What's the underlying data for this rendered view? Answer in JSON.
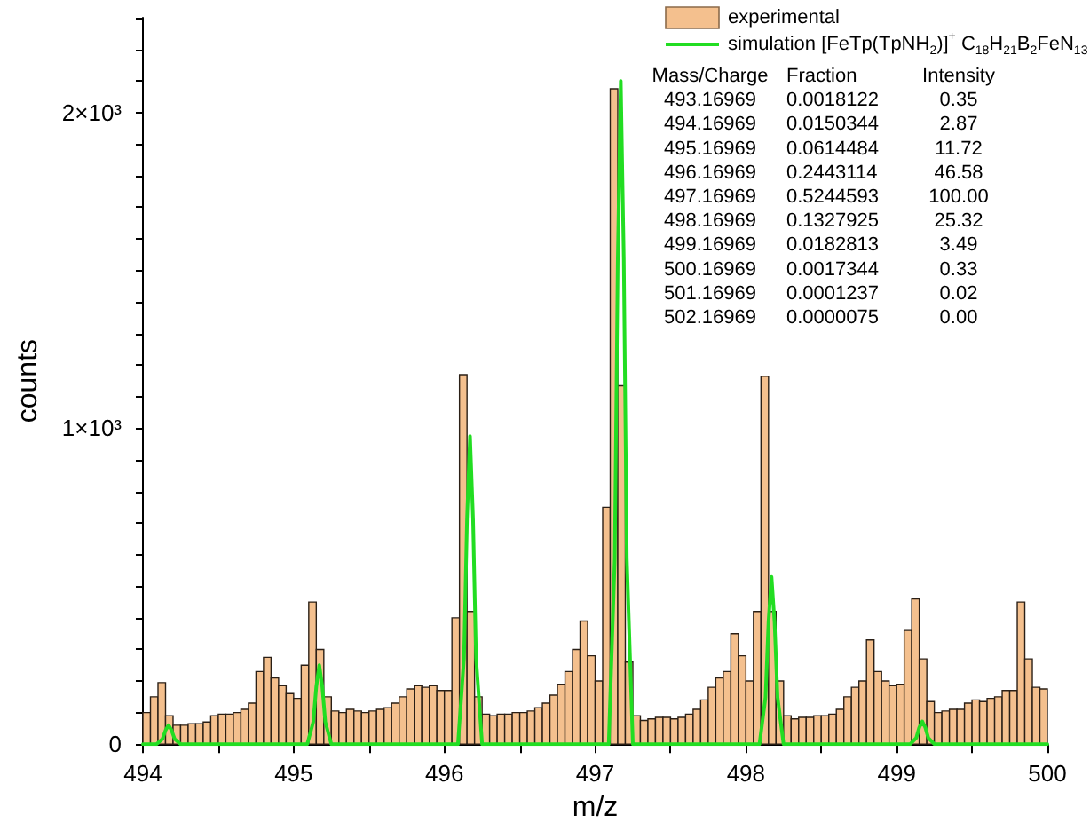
{
  "chart_data": {
    "type": "histogram",
    "xlabel": "m/z",
    "ylabel": "counts",
    "legend": "top right",
    "bins": [
      494.0,
      494.05,
      494.1,
      494.15,
      494.2,
      494.25,
      494.3,
      494.35,
      494.4,
      494.45,
      494.5,
      494.55,
      494.6,
      494.65,
      494.7,
      494.75,
      494.8,
      494.85,
      494.9,
      494.95,
      495.0,
      495.05,
      495.1,
      495.15,
      495.2,
      495.25,
      495.3,
      495.35,
      495.4,
      495.45,
      495.5,
      495.55,
      495.6,
      495.65,
      495.7,
      495.75,
      495.8,
      495.85,
      495.9,
      495.95,
      496.0,
      496.05,
      496.1,
      496.15,
      496.2,
      496.25,
      496.3,
      496.35,
      496.4,
      496.45,
      496.5,
      496.55,
      496.6,
      496.65,
      496.7,
      496.75,
      496.8,
      496.85,
      496.9,
      496.95,
      497.0,
      497.05,
      497.1,
      497.15,
      497.2,
      497.25,
      497.3,
      497.35,
      497.4,
      497.45,
      497.5,
      497.55,
      497.6,
      497.65,
      497.7,
      497.75,
      497.8,
      497.85,
      497.9,
      497.95,
      498.0,
      498.05,
      498.1,
      498.15,
      498.2,
      498.25,
      498.3,
      498.35,
      498.4,
      498.45,
      498.5,
      498.55,
      498.6,
      498.65,
      498.7,
      498.75,
      498.8,
      498.85,
      498.9,
      498.95,
      499.0,
      499.05,
      499.1,
      499.15,
      499.2,
      499.25,
      499.3,
      499.35,
      499.4,
      499.45,
      499.5,
      499.55,
      499.6,
      499.65,
      499.7,
      499.75,
      499.8,
      499.85,
      499.9,
      499.95,
      500.0
    ],
    "series": [
      {
        "name": "experimental",
        "color": "#f4c08e",
        "values": [
          100,
          150,
          195,
          90,
          60,
          60,
          65,
          65,
          70,
          90,
          95,
          95,
          100,
          110,
          130,
          230,
          275,
          210,
          185,
          160,
          145,
          250,
          450,
          300,
          150,
          105,
          100,
          110,
          105,
          100,
          105,
          110,
          115,
          130,
          150,
          175,
          185,
          180,
          185,
          170,
          170,
          400,
          1170,
          420,
          150,
          95,
          90,
          95,
          95,
          100,
          100,
          105,
          115,
          130,
          155,
          190,
          230,
          300,
          390,
          280,
          200,
          750,
          2075,
          1135,
          260,
          90,
          75,
          80,
          85,
          85,
          80,
          85,
          95,
          110,
          140,
          180,
          210,
          230,
          350,
          280,
          200,
          420,
          1165,
          420,
          200,
          90,
          80,
          85,
          85,
          90,
          90,
          95,
          110,
          150,
          180,
          200,
          330,
          230,
          200,
          185,
          190,
          360,
          460,
          270,
          135,
          100,
          105,
          110,
          110,
          130,
          140,
          135,
          145,
          150,
          170,
          170,
          450,
          270,
          180,
          175
        ]
      },
      {
        "name": "simulation [FeTp(TpNH$_{2}$)]$^{+}$ C$_{18}$H$_{21}$B$_{2}$FeN$_{13}$",
        "type": "line",
        "color": "#22dd22",
        "marker": "none",
        "line_style": "solid",
        "x": [
          494.0,
          494.09,
          494.13,
          494.15,
          494.17,
          494.19,
          494.21,
          494.25,
          495.09,
          495.13,
          495.15,
          495.17,
          495.19,
          495.21,
          495.25,
          496.09,
          496.13,
          496.15,
          496.17,
          496.19,
          496.21,
          496.25,
          497.09,
          497.13,
          497.15,
          497.17,
          497.19,
          497.21,
          497.25,
          498.09,
          498.13,
          498.15,
          498.17,
          498.19,
          498.21,
          498.25,
          499.09,
          499.13,
          499.15,
          499.17,
          499.19,
          499.21,
          499.25,
          500.0
        ],
        "values": [
          0,
          0,
          17,
          44,
          60,
          44,
          17,
          0,
          0,
          70,
          182,
          250,
          182,
          70,
          0,
          0,
          273,
          712,
          975,
          712,
          273,
          0,
          0,
          588,
          1533,
          2100,
          1533,
          588,
          0,
          0,
          148,
          387,
          530,
          387,
          148,
          0,
          0,
          20,
          53,
          72,
          53,
          20,
          0,
          0
        ]
      }
    ],
    "xlim": [
      494,
      500
    ],
    "xticks": [
      494,
      {
        "value": 494.5,
        "label": null
      },
      495,
      {
        "value": 495.5,
        "label": null
      },
      496,
      {
        "value": 496.5,
        "label": null
      },
      497,
      {
        "value": 497.5,
        "label": null
      },
      498,
      {
        "value": 498.5,
        "label": null
      },
      499,
      {
        "value": 499.5,
        "label": null
      },
      500
    ],
    "ylim": [
      0,
      2300
    ],
    "yticks": [
      0,
      {
        "value": 100,
        "label": null
      },
      {
        "value": 200,
        "label": null
      },
      {
        "value": 300,
        "label": null
      },
      {
        "value": 400,
        "label": null
      },
      {
        "value": 500,
        "label": null
      },
      {
        "value": 600,
        "label": null
      },
      {
        "value": 700,
        "label": null
      },
      {
        "value": 800,
        "label": null
      },
      {
        "value": 900,
        "label": null
      },
      {
        "value": 1000,
        "label": "1×10³"
      },
      {
        "value": 1100,
        "label": null
      },
      {
        "value": 1200,
        "label": null
      },
      {
        "value": 1300,
        "label": null
      },
      {
        "value": 1400,
        "label": null
      },
      {
        "value": 1500,
        "label": null
      },
      {
        "value": 1600,
        "label": null
      },
      {
        "value": 1700,
        "label": null
      },
      {
        "value": 1800,
        "label": null
      },
      {
        "value": 1900,
        "label": null
      },
      {
        "value": 2000,
        "label": "2×10³"
      },
      {
        "value": 2100,
        "label": null
      },
      {
        "value": 2200,
        "label": null
      },
      {
        "value": 2300,
        "label": null
      }
    ],
    "annotations": [
      "Mass/Charge",
      "Fraction",
      "Intensity",
      "493.16969",
      "0.0018122",
      "0.35",
      "494.16969",
      "0.0150344",
      "2.87",
      "495.16969",
      "0.0614484",
      "11.72",
      "496.16969",
      "0.2443114",
      "46.58",
      "497.16969",
      "0.5244593",
      "100.00",
      "498.16969",
      "0.1327925",
      "25.32",
      "499.16969",
      "0.0182813",
      "3.49",
      "500.16969",
      "0.0017344",
      "0.33",
      "501.16969",
      "0.0001237",
      "0.02",
      "502.16969",
      "0.0000075",
      "0.00"
    ]
  }
}
